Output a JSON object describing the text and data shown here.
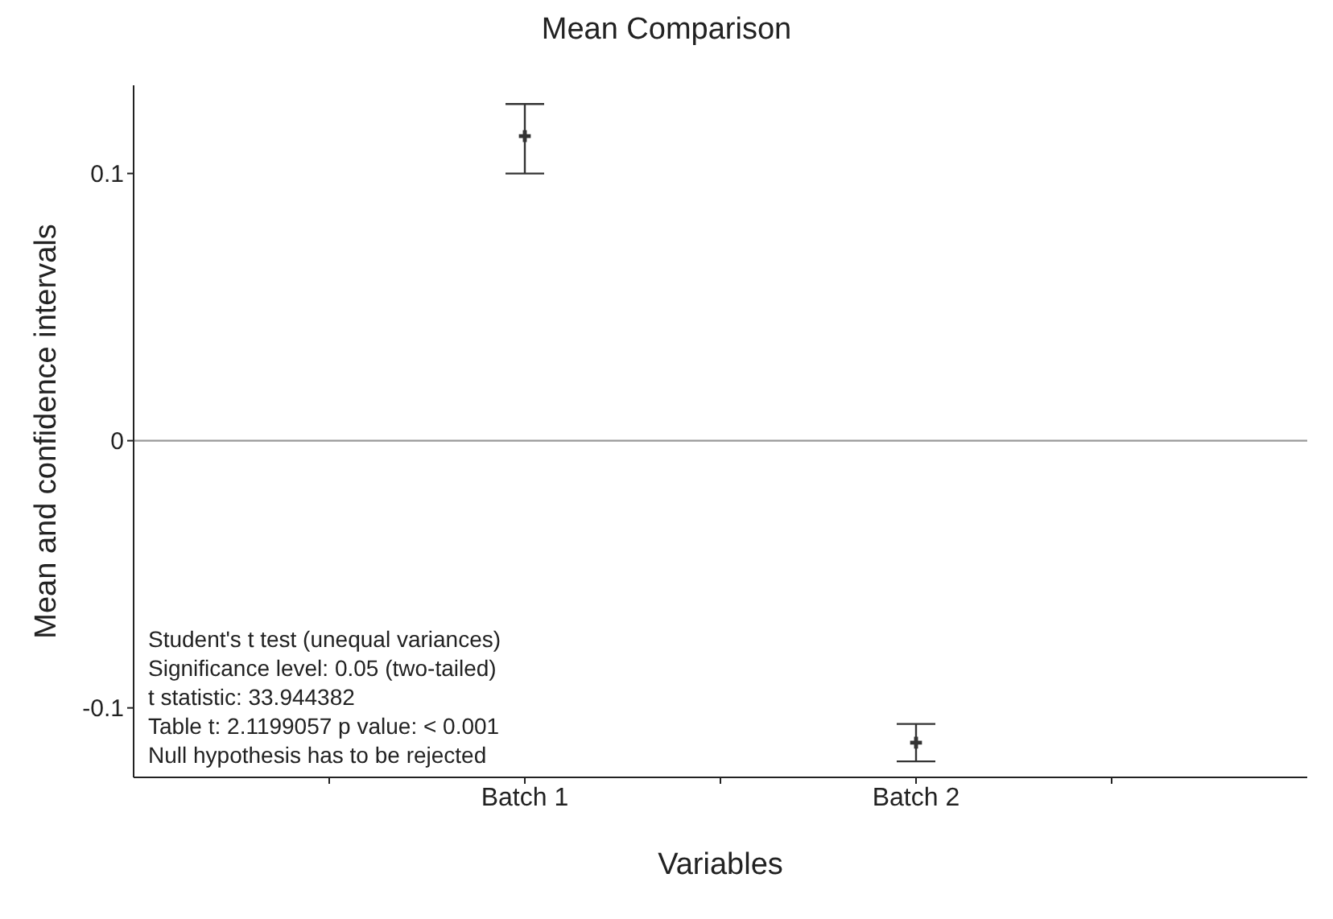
{
  "chart_data": {
    "type": "scatter",
    "title": "Mean Comparison",
    "xlabel": "Variables",
    "ylabel": "Mean and confidence intervals",
    "categories": [
      null,
      "Batch 1",
      null,
      "Batch 2",
      null
    ],
    "values": [
      null,
      0.114,
      null,
      -0.113,
      null
    ],
    "errors": [
      null,
      [
        0.1,
        0.126
      ],
      null,
      [
        -0.12,
        -0.106
      ],
      null
    ],
    "color": "#333333",
    "marker": "cross",
    "ylim": [
      -0.126,
      0.133
    ],
    "yticks": [
      -0.1,
      0,
      0.1
    ],
    "grid": false,
    "legend": false,
    "ref_lines": [
      {
        "axis": "y",
        "value": 0,
        "color": "#999999"
      }
    ],
    "annotations": [
      "Student's t test (unequal variances)\nSignificance level: 0.05 (two-tailed)\nt statistic: 33.944382\nTable t: 2.1199057 p value: < 0.001\nNull hypothesis has to be rejected"
    ]
  }
}
